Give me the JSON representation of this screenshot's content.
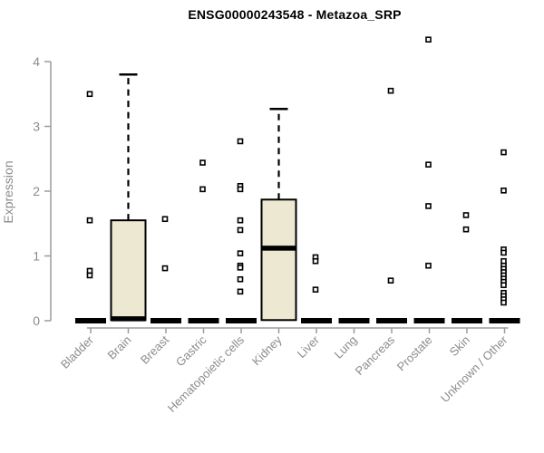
{
  "chart_data": {
    "type": "box",
    "title": "ENSG00000243548 - Metazoa_SRP",
    "ylabel": "Expression",
    "xlabel": "",
    "ylim": [
      0,
      4
    ],
    "yticks": [
      0,
      1,
      2,
      3,
      4
    ],
    "grid": false,
    "legend": false,
    "categories": [
      "Bladder",
      "Brain",
      "Breast",
      "Gastric",
      "Hematopoietic cells",
      "Kidney",
      "Liver",
      "Lung",
      "Pancreas",
      "Prostate",
      "Skin",
      "Unknown / Other"
    ],
    "boxes": [
      {
        "category": "Bladder",
        "q1": 0,
        "median": 0,
        "q3": 0,
        "whisker_low": 0,
        "whisker_high": 0,
        "outliers": [
          3.5,
          1.55,
          0.77,
          0.7
        ]
      },
      {
        "category": "Brain",
        "q1": 0.01,
        "median": 0.03,
        "q3": 1.55,
        "whisker_low": 0,
        "whisker_high": 3.8,
        "outliers": []
      },
      {
        "category": "Breast",
        "q1": 0,
        "median": 0,
        "q3": 0,
        "whisker_low": 0,
        "whisker_high": 0,
        "outliers": [
          1.57,
          0.81
        ]
      },
      {
        "category": "Gastric",
        "q1": 0,
        "median": 0,
        "q3": 0,
        "whisker_low": 0,
        "whisker_high": 0,
        "outliers": [
          2.44,
          2.03
        ]
      },
      {
        "category": "Hematopoietic cells",
        "q1": 0,
        "median": 0,
        "q3": 0,
        "whisker_low": 0,
        "whisker_high": 0,
        "outliers": [
          2.77,
          2.08,
          2.03,
          1.55,
          1.4,
          1.04,
          0.85,
          0.82,
          0.64,
          0.45
        ]
      },
      {
        "category": "Kidney",
        "q1": 0.01,
        "median": 1.12,
        "q3": 1.87,
        "whisker_low": 0,
        "whisker_high": 3.27,
        "outliers": []
      },
      {
        "category": "Liver",
        "q1": 0,
        "median": 0,
        "q3": 0,
        "whisker_low": 0,
        "whisker_high": 0,
        "outliers": [
          0.98,
          0.92,
          0.48
        ]
      },
      {
        "category": "Lung",
        "q1": 0,
        "median": 0,
        "q3": 0,
        "whisker_low": 0,
        "whisker_high": 0,
        "outliers": []
      },
      {
        "category": "Pancreas",
        "q1": 0,
        "median": 0,
        "q3": 0,
        "whisker_low": 0,
        "whisker_high": 0,
        "outliers": [
          3.55,
          0.62
        ]
      },
      {
        "category": "Prostate",
        "q1": 0,
        "median": 0,
        "q3": 0,
        "whisker_low": 0,
        "whisker_high": 0,
        "outliers": [
          4.34,
          2.41,
          1.77,
          0.85
        ]
      },
      {
        "category": "Skin",
        "q1": 0,
        "median": 0,
        "q3": 0,
        "whisker_low": 0,
        "whisker_high": 0,
        "outliers": [
          1.63,
          1.41
        ]
      },
      {
        "category": "Unknown / Other",
        "q1": 0,
        "median": 0,
        "q3": 0,
        "whisker_low": 0,
        "whisker_high": 0,
        "outliers": [
          2.6,
          2.01,
          1.1,
          1.05,
          0.92,
          0.85,
          0.8,
          0.75,
          0.7,
          0.65,
          0.6,
          0.55,
          0.43,
          0.38,
          0.33,
          0.28
        ]
      }
    ],
    "colors": {
      "box_fill": "#ede8d1",
      "box_border": "#000000",
      "median": "#000000",
      "whisker": "#000000",
      "outlier_stroke": "#000000",
      "outlier_fill": "#ffffff",
      "axis": "#9c9c9c",
      "tick_label": "#8c8c8c",
      "title": "#000000",
      "background": "#ffffff"
    }
  }
}
